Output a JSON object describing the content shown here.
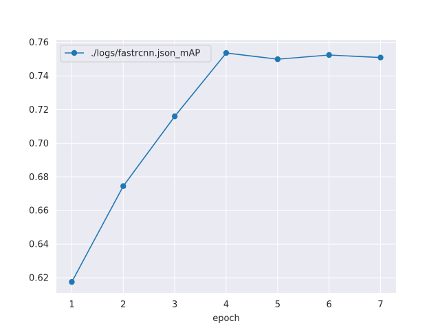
{
  "chart_data": {
    "type": "line",
    "xlabel": "epoch",
    "ylabel": "",
    "x": [
      1,
      2,
      3,
      4,
      5,
      6,
      7
    ],
    "xticks": [
      "1",
      "2",
      "3",
      "4",
      "5",
      "6",
      "7"
    ],
    "xlim": [
      0.7,
      7.3
    ],
    "ylim": [
      0.611,
      0.7615
    ],
    "yticks": [
      "0.62",
      "0.64",
      "0.66",
      "0.68",
      "0.70",
      "0.72",
      "0.74",
      "0.76"
    ],
    "grid": true,
    "legend": {
      "placement": "top-left",
      "entries": [
        "./logs/fastrcnn.json_mAP"
      ]
    },
    "series": [
      {
        "name": "./logs/fastrcnn.json_mAP",
        "color": "#1f77b4",
        "marker": "circle",
        "values": [
          0.6175,
          0.6745,
          0.716,
          0.7537,
          0.75,
          0.7525,
          0.751
        ]
      }
    ],
    "colors": {
      "plot_background": "#eaeaf2",
      "grid": "#ffffff",
      "line": "#1f77b4"
    }
  }
}
